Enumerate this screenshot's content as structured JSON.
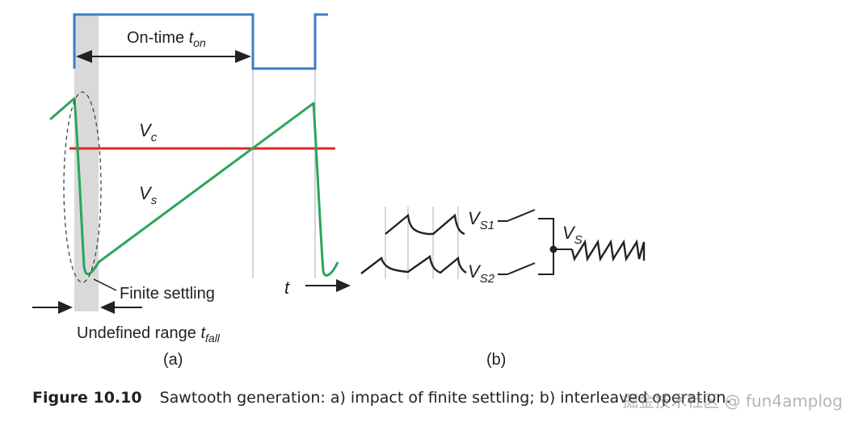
{
  "labels": {
    "on_time": "On-time",
    "on_time_sym": "t",
    "on_time_sub": "on",
    "vc": "V",
    "vc_sub": "c",
    "vs": "V",
    "vs_sub": "s",
    "finite_settling": "Finite settling",
    "t_axis": "t",
    "undefined_range": "Undefined range",
    "tfall_sym": "t",
    "tfall_sub": "fall",
    "panel_a": "(a)",
    "panel_b": "(b)",
    "vs1": "V",
    "vs1_sub": "S1",
    "vs2": "V",
    "vs2_sub": "S2",
    "vs_out": "V",
    "vs_out_sub": "S"
  },
  "caption": {
    "figure_no": "Figure 10.10",
    "text": "Sawtooth generation: a) impact of finite settling; b) interleaved operation."
  },
  "watermark": "掘金技术社区 @ fun4amplog",
  "colors": {
    "clock": "#3a7dc9",
    "sawtooth": "#2aa55a",
    "vc_line": "#e0242b",
    "shade": "#d8d8d8",
    "ink": "#222222"
  }
}
